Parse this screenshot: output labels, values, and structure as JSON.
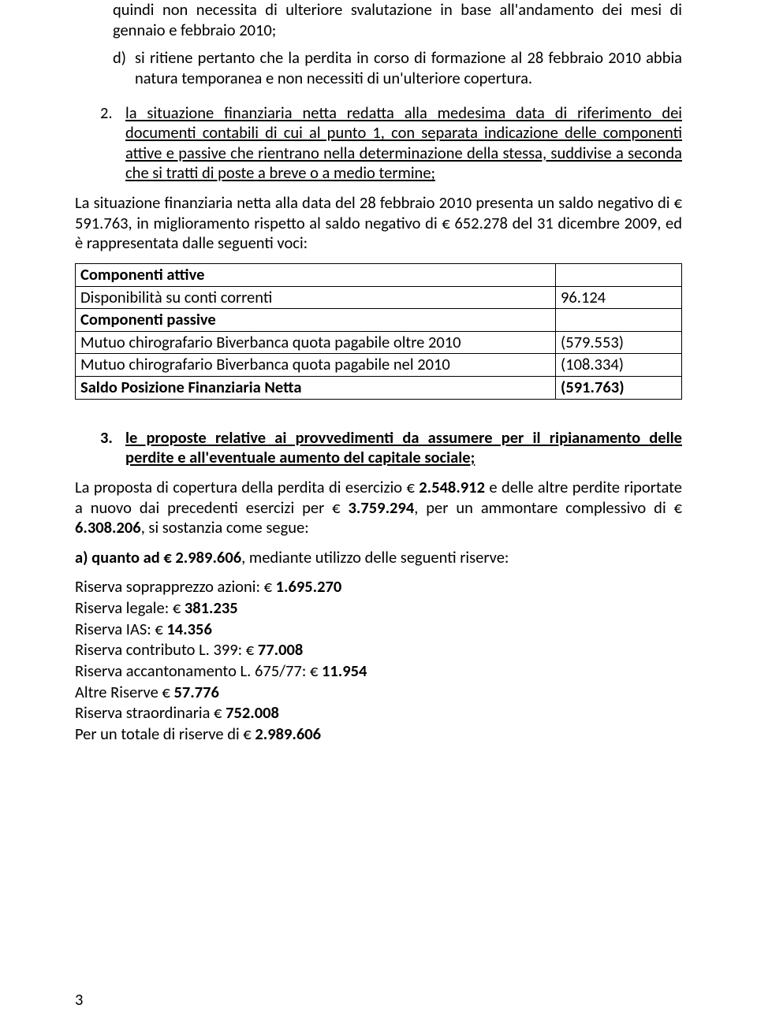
{
  "section_c": {
    "text": "quindi non necessita di ulteriore svalutazione in base all'andamento dei mesi di gennaio e febbraio 2010;"
  },
  "section_d": {
    "marker": "d)",
    "text": "si ritiene pertanto che la perdita in corso di formazione al 28 febbraio 2010 abbia natura temporanea e non necessiti di un'ulteriore copertura."
  },
  "item2": {
    "marker": "2.",
    "text": "la situazione finanziaria netta redatta alla medesima data di riferimento dei documenti contabili di cui al punto 1, con separata indicazione delle componenti attive e passive che rientrano nella determinazione della stessa, suddivise a seconda che si tratti di poste a breve o a medio termine;"
  },
  "para_situazione": "La situazione finanziaria netta alla data del 28 febbraio 2010 presenta un saldo negativo di € 591.763, in miglioramento rispetto al saldo negativo di € 652.278 del 31 dicembre 2009, ed è rappresentata dalle seguenti voci:",
  "table": {
    "rows": [
      {
        "label": "Componenti attive",
        "value": "",
        "bold": true
      },
      {
        "label": "Disponibilità su conti correnti",
        "value": "96.124",
        "bold": false
      },
      {
        "label": "Componenti passive",
        "value": "",
        "bold": true
      },
      {
        "label": "Mutuo chirografario Biverbanca quota pagabile oltre 2010",
        "value": "(579.553)",
        "bold": false
      },
      {
        "label": "Mutuo chirografario  Biverbanca quota pagabile nel 2010",
        "value": "(108.334)",
        "bold": false
      },
      {
        "label": "Saldo Posizione Finanziaria Netta",
        "value": "(591.763)",
        "bold": true
      }
    ]
  },
  "item3": {
    "marker": "3.",
    "text": "le proposte relative ai provvedimenti da assumere per il ripianamento delle perdite e all'eventuale aumento del capitale sociale;"
  },
  "para_proposta": {
    "prefix": "La proposta di copertura della perdita di esercizio € ",
    "amount1": "2.548.912",
    "mid1": " e delle altre perdite riportate a nuovo dai precedenti esercizi per € ",
    "amount2": "3.759.294",
    "mid2": ", per un ammontare complessivo di € ",
    "amount3": "6.308.206",
    "suffix": ", si sostanzia come segue:"
  },
  "line_a": {
    "prefix": "a) quanto ad € 2.989.606",
    "suffix": ", mediante utilizzo delle seguenti riserve:"
  },
  "riserve": [
    {
      "label": "Riserva soprapprezzo azioni: € ",
      "amount": "1.695.270"
    },
    {
      "label": "Riserva legale: € ",
      "amount": "381.235"
    },
    {
      "label": "Riserva IAS: € ",
      "amount": "14.356"
    },
    {
      "label": "Riserva contributo L. 399: € ",
      "amount": "77.008"
    },
    {
      "label": "Riserva accantonamento L.  675/77: € ",
      "amount": "11.954"
    },
    {
      "label": "Altre Riserve  € ",
      "amount": "57.776"
    },
    {
      "label": "Riserva straordinaria € ",
      "amount": "752.008"
    },
    {
      "label": "Per un totale di riserve di € ",
      "amount": "2.989.606"
    }
  ],
  "page_number": "3"
}
